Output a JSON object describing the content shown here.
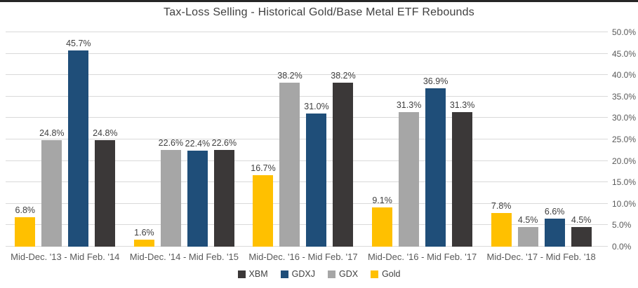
{
  "chart_data": {
    "type": "bar",
    "title": "Tax-Loss Selling - Historical Gold/Base Metal ETF Rebounds",
    "categories": [
      "Mid-Dec. '13 - Mid Feb. '14",
      "Mid-Dec. '14 - Mid Feb. '15",
      "Mid-Dec. '16 - Mid Feb. '17",
      "Mid-Dec. '16 - Mid Feb. '17",
      "Mid-Dec. '17 - Mid Feb. '18"
    ],
    "series": [
      {
        "name": "XBM",
        "color": "#3B3838",
        "values": [
          24.8,
          22.6,
          38.2,
          31.3,
          4.5
        ],
        "labels": [
          "24.8%",
          "22.6%",
          "38.2%",
          "31.3%",
          "4.5%"
        ]
      },
      {
        "name": "GDXJ",
        "color": "#1F4E79",
        "values": [
          45.7,
          22.4,
          31.0,
          36.9,
          6.6
        ],
        "labels": [
          "45.7%",
          "22.4%",
          "31.0%",
          "36.9%",
          "6.6%"
        ]
      },
      {
        "name": "GDX",
        "color": "#A6A6A6",
        "values": [
          24.8,
          22.6,
          38.2,
          31.3,
          4.5
        ],
        "labels": [
          "24.8%",
          "22.6%",
          "38.2%",
          "31.3%",
          "4.5%"
        ]
      },
      {
        "name": "Gold",
        "color": "#FFC000",
        "values": [
          6.8,
          1.6,
          16.7,
          9.1,
          7.8
        ],
        "labels": [
          "6.8%",
          "1.6%",
          "16.7%",
          "9.1%",
          "7.8%"
        ]
      }
    ],
    "bar_draw_order": [
      "Gold",
      "GDX",
      "GDXJ",
      "XBM"
    ],
    "legend_order": [
      "XBM",
      "GDXJ",
      "GDX",
      "Gold"
    ],
    "legend_position": "bottom",
    "y_axis_side": "right",
    "y_ticks": [
      "0.0%",
      "5.0%",
      "10.0%",
      "15.0%",
      "20.0%",
      "25.0%",
      "30.0%",
      "35.0%",
      "40.0%",
      "45.0%",
      "50.0%"
    ],
    "ylim": [
      0,
      50
    ],
    "grid": true,
    "colors": {
      "accent_bar": "#262626",
      "gridline": "#D9D9D9",
      "title_text": "#404040",
      "axis_text": "#595959",
      "value_label_text": "#404040"
    }
  }
}
